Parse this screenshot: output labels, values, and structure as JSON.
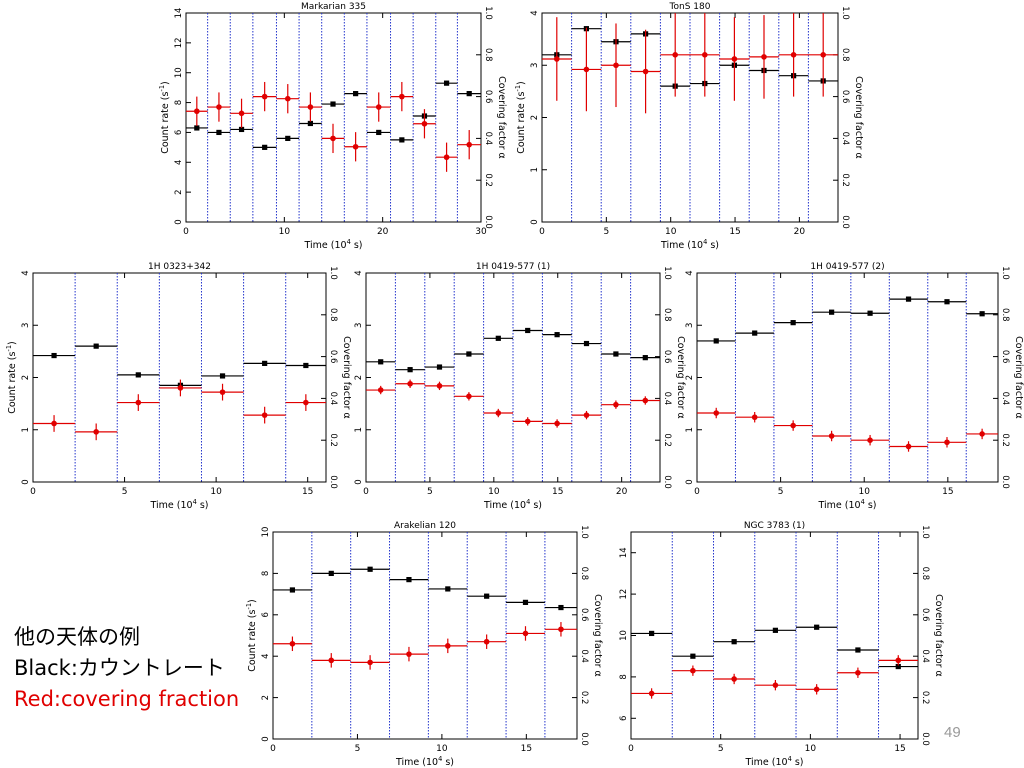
{
  "caption": {
    "title": "他の天体の例",
    "black_line": "Black:カウントレート",
    "red_line": "Red:covering fraction"
  },
  "page_number": "49",
  "colors": {
    "count_rate": "#000000",
    "covering": "#e00000",
    "boundary": "#2233cc"
  },
  "chart_data": [
    {
      "type": "scatter",
      "title": "Markarian 335",
      "xlabel": "Time (10^4 s)",
      "ylabel": "Count rate (s^-1)",
      "y2label": "Covering factor α",
      "xlim": [
        0,
        30
      ],
      "ylim": [
        0,
        14
      ],
      "y2lim": [
        0,
        1
      ],
      "xticks": [
        0,
        10,
        20,
        30
      ],
      "yticks": [
        0,
        2,
        4,
        6,
        8,
        10,
        12,
        14
      ],
      "y2ticks": [
        0.0,
        0.2,
        0.4,
        0.6,
        0.8,
        1.0
      ],
      "boundaries": [
        2.2,
        4.5,
        6.8,
        9.2,
        11.5,
        13.8,
        16.1,
        18.4,
        20.8,
        23.1,
        25.4,
        27.6
      ],
      "series": [
        {
          "key": "count_rate",
          "bins": [
            [
              0,
              2.2
            ],
            [
              2.2,
              4.5
            ],
            [
              4.5,
              6.8
            ],
            [
              6.8,
              9.2
            ],
            [
              9.2,
              11.5
            ],
            [
              11.5,
              13.8
            ],
            [
              13.8,
              16.1
            ],
            [
              16.1,
              18.4
            ],
            [
              18.4,
              20.8
            ],
            [
              20.8,
              23.1
            ],
            [
              23.1,
              25.4
            ],
            [
              25.4,
              27.6
            ],
            [
              27.6,
              30
            ]
          ],
          "values": [
            6.3,
            6.0,
            6.2,
            5.0,
            5.6,
            6.6,
            7.9,
            8.6,
            6.0,
            5.5,
            7.1,
            9.3,
            8.6
          ]
        },
        {
          "key": "covering",
          "bins": [
            [
              0,
              2.2
            ],
            [
              2.2,
              4.5
            ],
            [
              4.5,
              6.8
            ],
            [
              6.8,
              9.2
            ],
            [
              9.2,
              11.5
            ],
            [
              11.5,
              13.8
            ],
            [
              13.8,
              16.1
            ],
            [
              16.1,
              18.4
            ],
            [
              18.4,
              20.8
            ],
            [
              20.8,
              23.1
            ],
            [
              23.1,
              25.4
            ],
            [
              25.4,
              27.6
            ],
            [
              27.6,
              30
            ]
          ],
          "values": [
            0.53,
            0.55,
            0.52,
            0.6,
            0.59,
            0.55,
            0.4,
            0.36,
            0.55,
            0.6,
            0.47,
            0.31,
            0.37
          ],
          "err": 0.07
        }
      ]
    },
    {
      "type": "scatter",
      "title": "TonS 180",
      "xlabel": "Time (10^4 s)",
      "ylabel": "Count rate (s^-1)",
      "y2label": "Covering factor α",
      "xlim": [
        0,
        23
      ],
      "ylim": [
        0,
        4
      ],
      "y2lim": [
        0,
        1
      ],
      "xticks": [
        0,
        5,
        10,
        15,
        20
      ],
      "yticks": [
        0,
        1,
        2,
        3,
        4
      ],
      "y2ticks": [
        0.0,
        0.2,
        0.4,
        0.6,
        0.8,
        1.0
      ],
      "boundaries": [
        2.3,
        4.6,
        6.9,
        9.2,
        11.5,
        13.8,
        16.1,
        18.4,
        20.7
      ],
      "series": [
        {
          "key": "count_rate",
          "bins": [
            [
              0,
              2.3
            ],
            [
              2.3,
              4.6
            ],
            [
              4.6,
              6.9
            ],
            [
              6.9,
              9.2
            ],
            [
              9.2,
              11.5
            ],
            [
              11.5,
              13.8
            ],
            [
              13.8,
              16.1
            ],
            [
              16.1,
              18.4
            ],
            [
              18.4,
              20.7
            ],
            [
              20.7,
              23
            ]
          ],
          "values": [
            3.2,
            3.7,
            3.45,
            3.6,
            2.6,
            2.65,
            3.0,
            2.9,
            2.8,
            2.7
          ]
        },
        {
          "key": "covering",
          "bins": [
            [
              0,
              2.3
            ],
            [
              2.3,
              4.6
            ],
            [
              4.6,
              6.9
            ],
            [
              6.9,
              9.2
            ],
            [
              9.2,
              11.5
            ],
            [
              11.5,
              13.8
            ],
            [
              13.8,
              16.1
            ],
            [
              16.1,
              18.4
            ],
            [
              18.4,
              20.7
            ],
            [
              20.7,
              23
            ]
          ],
          "values": [
            0.78,
            0.73,
            0.75,
            0.72,
            0.8,
            0.8,
            0.78,
            0.79,
            0.8,
            0.8
          ],
          "err": 0.2
        }
      ]
    },
    {
      "type": "scatter",
      "title": "1H 0323+342",
      "xlabel": "Time (10^4 s)",
      "ylabel": "Count rate (s^-1)",
      "y2label": "Covering factor α",
      "xlim": [
        0,
        16
      ],
      "ylim": [
        0,
        4
      ],
      "y2lim": [
        0,
        1
      ],
      "xticks": [
        0,
        5,
        10,
        15
      ],
      "yticks": [
        0,
        1,
        2,
        3,
        4
      ],
      "y2ticks": [
        0.0,
        0.2,
        0.4,
        0.6,
        0.8,
        1.0
      ],
      "boundaries": [
        2.3,
        4.6,
        6.9,
        9.2,
        11.5,
        13.8
      ],
      "series": [
        {
          "key": "count_rate",
          "bins": [
            [
              0,
              2.3
            ],
            [
              2.3,
              4.6
            ],
            [
              4.6,
              6.9
            ],
            [
              6.9,
              9.2
            ],
            [
              9.2,
              11.5
            ],
            [
              11.5,
              13.8
            ],
            [
              13.8,
              16
            ]
          ],
          "values": [
            2.42,
            2.6,
            2.05,
            1.85,
            2.03,
            2.27,
            2.23
          ]
        },
        {
          "key": "covering",
          "bins": [
            [
              0,
              2.3
            ],
            [
              2.3,
              4.6
            ],
            [
              4.6,
              6.9
            ],
            [
              6.9,
              9.2
            ],
            [
              9.2,
              11.5
            ],
            [
              11.5,
              13.8
            ],
            [
              13.8,
              16
            ]
          ],
          "values": [
            0.28,
            0.24,
            0.38,
            0.45,
            0.43,
            0.32,
            0.38
          ],
          "err": 0.04
        }
      ]
    },
    {
      "type": "scatter",
      "title": "1H 0419-577 (1)",
      "xlabel": "Time (10^4 s)",
      "ylabel": "",
      "y2label": "Covering factor α",
      "xlim": [
        0,
        23
      ],
      "ylim": [
        0,
        4
      ],
      "y2lim": [
        0,
        1
      ],
      "xticks": [
        0,
        5,
        10,
        15,
        20
      ],
      "yticks": [
        0,
        1,
        2,
        3,
        4
      ],
      "y2ticks": [
        0.0,
        0.2,
        0.4,
        0.6,
        0.8,
        1.0
      ],
      "boundaries": [
        2.3,
        4.6,
        6.9,
        9.2,
        11.5,
        13.8,
        16.1,
        18.4,
        20.7
      ],
      "series": [
        {
          "key": "count_rate",
          "bins": [
            [
              0,
              2.3
            ],
            [
              2.3,
              4.6
            ],
            [
              4.6,
              6.9
            ],
            [
              6.9,
              9.2
            ],
            [
              9.2,
              11.5
            ],
            [
              11.5,
              13.8
            ],
            [
              13.8,
              16.1
            ],
            [
              16.1,
              18.4
            ],
            [
              18.4,
              20.7
            ],
            [
              20.7,
              23
            ]
          ],
          "values": [
            2.3,
            2.15,
            2.2,
            2.45,
            2.75,
            2.9,
            2.82,
            2.65,
            2.45,
            2.38
          ]
        },
        {
          "key": "covering",
          "bins": [
            [
              0,
              2.3
            ],
            [
              2.3,
              4.6
            ],
            [
              4.6,
              6.9
            ],
            [
              6.9,
              9.2
            ],
            [
              9.2,
              11.5
            ],
            [
              11.5,
              13.8
            ],
            [
              13.8,
              16.1
            ],
            [
              16.1,
              18.4
            ],
            [
              18.4,
              20.7
            ],
            [
              20.7,
              23
            ]
          ],
          "values": [
            0.44,
            0.47,
            0.46,
            0.41,
            0.33,
            0.29,
            0.28,
            0.32,
            0.37,
            0.39
          ],
          "err": 0.02
        }
      ]
    },
    {
      "type": "scatter",
      "title": "1H 0419-577 (2)",
      "xlabel": "Time (10^4 s)",
      "ylabel": "",
      "y2label": "Covering factor α",
      "xlim": [
        0,
        18
      ],
      "ylim": [
        0,
        4
      ],
      "y2lim": [
        0,
        1
      ],
      "xticks": [
        0,
        5,
        10,
        15
      ],
      "yticks": [
        0,
        1,
        2,
        3,
        4
      ],
      "y2ticks": [
        0.0,
        0.2,
        0.4,
        0.6,
        0.8,
        1.0
      ],
      "boundaries": [
        2.3,
        4.6,
        6.9,
        9.2,
        11.5,
        13.8,
        16.1
      ],
      "series": [
        {
          "key": "count_rate",
          "bins": [
            [
              0,
              2.3
            ],
            [
              2.3,
              4.6
            ],
            [
              4.6,
              6.9
            ],
            [
              6.9,
              9.2
            ],
            [
              9.2,
              11.5
            ],
            [
              11.5,
              13.8
            ],
            [
              13.8,
              16.1
            ],
            [
              16.1,
              18
            ]
          ],
          "values": [
            2.7,
            2.85,
            3.05,
            3.25,
            3.23,
            3.5,
            3.45,
            3.22
          ]
        },
        {
          "key": "covering",
          "bins": [
            [
              0,
              2.3
            ],
            [
              2.3,
              4.6
            ],
            [
              4.6,
              6.9
            ],
            [
              6.9,
              9.2
            ],
            [
              9.2,
              11.5
            ],
            [
              11.5,
              13.8
            ],
            [
              13.8,
              16.1
            ],
            [
              16.1,
              18
            ]
          ],
          "values": [
            0.33,
            0.31,
            0.27,
            0.22,
            0.2,
            0.17,
            0.19,
            0.23
          ],
          "err": 0.025
        }
      ]
    },
    {
      "type": "scatter",
      "title": "Arakelian 120",
      "xlabel": "Time (10^4 s)",
      "ylabel": "Count rate (s^-1)",
      "y2label": "Covering factor α",
      "xlim": [
        0,
        18
      ],
      "ylim": [
        0,
        10
      ],
      "y2lim": [
        0,
        1
      ],
      "xticks": [
        0,
        5,
        10,
        15
      ],
      "yticks": [
        0,
        2,
        4,
        6,
        8,
        10
      ],
      "y2ticks": [
        0.0,
        0.2,
        0.4,
        0.6,
        0.8,
        1.0
      ],
      "boundaries": [
        2.3,
        4.6,
        6.9,
        9.2,
        11.5,
        13.8,
        16.1
      ],
      "series": [
        {
          "key": "count_rate",
          "bins": [
            [
              0,
              2.3
            ],
            [
              2.3,
              4.6
            ],
            [
              4.6,
              6.9
            ],
            [
              6.9,
              9.2
            ],
            [
              9.2,
              11.5
            ],
            [
              11.5,
              13.8
            ],
            [
              13.8,
              16.1
            ],
            [
              16.1,
              18
            ]
          ],
          "values": [
            7.2,
            8.0,
            8.2,
            7.7,
            7.25,
            6.9,
            6.6,
            6.35
          ]
        },
        {
          "key": "covering",
          "bins": [
            [
              0,
              2.3
            ],
            [
              2.3,
              4.6
            ],
            [
              4.6,
              6.9
            ],
            [
              6.9,
              9.2
            ],
            [
              9.2,
              11.5
            ],
            [
              11.5,
              13.8
            ],
            [
              13.8,
              16.1
            ],
            [
              16.1,
              18
            ]
          ],
          "values": [
            0.46,
            0.38,
            0.37,
            0.41,
            0.45,
            0.47,
            0.51,
            0.53
          ],
          "err": 0.035
        }
      ]
    },
    {
      "type": "scatter",
      "title": "NGC 3783 (1)",
      "xlabel": "Time (10^4 s)",
      "ylabel": "",
      "y2label": "Covering factor α",
      "xlim": [
        0,
        16
      ],
      "ylim": [
        5,
        15
      ],
      "y2lim": [
        0,
        1
      ],
      "xticks": [
        0,
        5,
        10,
        15
      ],
      "yticks": [
        6,
        8,
        10,
        12,
        14
      ],
      "y2ticks": [
        0.0,
        0.2,
        0.4,
        0.6,
        0.8,
        1.0
      ],
      "boundaries": [
        2.3,
        4.6,
        6.9,
        9.2,
        11.5,
        13.8
      ],
      "series": [
        {
          "key": "count_rate",
          "bins": [
            [
              0,
              2.3
            ],
            [
              2.3,
              4.6
            ],
            [
              4.6,
              6.9
            ],
            [
              6.9,
              9.2
            ],
            [
              9.2,
              11.5
            ],
            [
              11.5,
              13.8
            ],
            [
              13.8,
              16
            ]
          ],
          "values": [
            10.1,
            9.0,
            9.7,
            10.25,
            10.4,
            9.3,
            8.5
          ]
        },
        {
          "key": "covering",
          "bins": [
            [
              0,
              2.3
            ],
            [
              2.3,
              4.6
            ],
            [
              4.6,
              6.9
            ],
            [
              6.9,
              9.2
            ],
            [
              9.2,
              11.5
            ],
            [
              11.5,
              13.8
            ],
            [
              13.8,
              16
            ]
          ],
          "values": [
            0.22,
            0.33,
            0.29,
            0.26,
            0.24,
            0.32,
            0.38
          ],
          "err": 0.025
        }
      ]
    }
  ]
}
